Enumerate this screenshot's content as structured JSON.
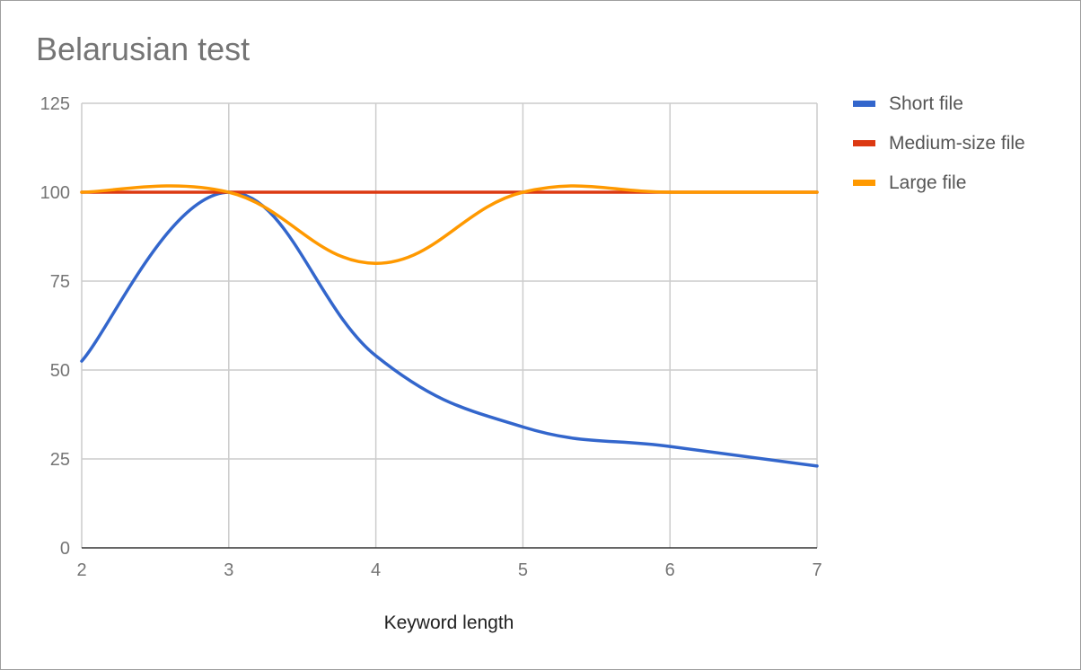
{
  "chart_data": {
    "type": "line",
    "title": "Belarusian test",
    "xlabel": "Keyword length",
    "ylabel": "",
    "x": [
      2,
      3,
      4,
      5,
      6,
      7
    ],
    "xlim": [
      2,
      7
    ],
    "ylim": [
      0,
      125
    ],
    "xticks": [
      "2",
      "3",
      "4",
      "5",
      "6",
      "7"
    ],
    "yticks": [
      "0",
      "25",
      "50",
      "75",
      "100",
      "125"
    ],
    "grid": true,
    "smooth": true,
    "legend_position": "right",
    "series": [
      {
        "name": "Short file",
        "color": "#3366cc",
        "values": [
          52.5,
          100,
          54,
          34,
          28.5,
          23
        ]
      },
      {
        "name": "Medium-size file",
        "color": "#dc3912",
        "values": [
          100,
          100,
          100,
          100,
          100,
          100
        ]
      },
      {
        "name": "Large file",
        "color": "#ff9900",
        "values": [
          100,
          100,
          80,
          100,
          100,
          100
        ]
      }
    ]
  }
}
